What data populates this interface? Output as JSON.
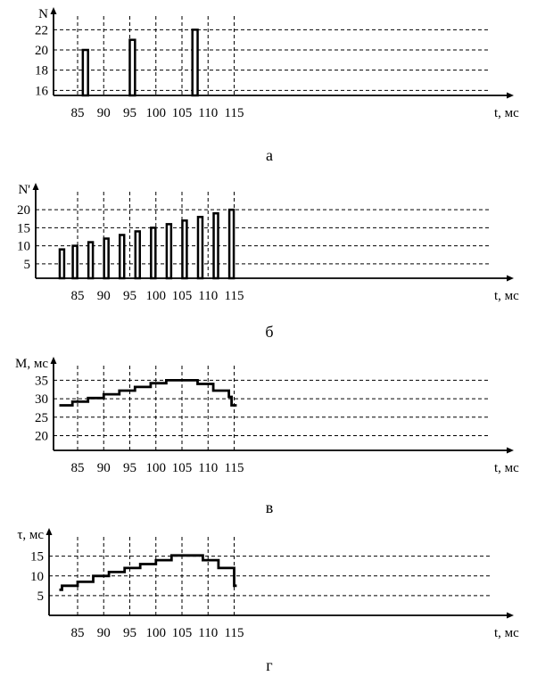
{
  "colors": {
    "line": "#000000",
    "grid": "#000000",
    "background": "#ffffff"
  },
  "chart_data": [
    {
      "type": "bar",
      "caption": "а",
      "ylabel": "N",
      "xlabel": "t, мс",
      "xlim": [
        81.5,
        117.5
      ],
      "ylim": [
        15.5,
        23
      ],
      "xticks": [
        85,
        90,
        95,
        100,
        105,
        110,
        115
      ],
      "yticks": [
        16,
        18,
        20,
        22
      ],
      "grid": true,
      "bar_width": 1,
      "points": [
        {
          "x": 86.5,
          "y": 20
        },
        {
          "x": 95.5,
          "y": 21
        },
        {
          "x": 107.5,
          "y": 22
        }
      ]
    },
    {
      "type": "bar",
      "caption": "б",
      "ylabel": "N'",
      "xlabel": "t, мс",
      "xlim": [
        81.5,
        117.5
      ],
      "ylim": [
        1,
        24
      ],
      "xticks": [
        85,
        90,
        95,
        100,
        105,
        110,
        115
      ],
      "yticks": [
        5,
        10,
        15,
        20
      ],
      "grid": true,
      "bar_width": 0.85,
      "points": [
        {
          "x": 82,
          "y": 9
        },
        {
          "x": 84.5,
          "y": 10
        },
        {
          "x": 87.5,
          "y": 11
        },
        {
          "x": 90.5,
          "y": 12
        },
        {
          "x": 93.5,
          "y": 13
        },
        {
          "x": 96.5,
          "y": 14
        },
        {
          "x": 99.5,
          "y": 15
        },
        {
          "x": 102.5,
          "y": 16
        },
        {
          "x": 105.5,
          "y": 17
        },
        {
          "x": 108.5,
          "y": 18
        },
        {
          "x": 111.5,
          "y": 19
        },
        {
          "x": 114.5,
          "y": 20
        }
      ]
    },
    {
      "type": "line",
      "step": true,
      "caption": "в",
      "ylabel": "M, мс",
      "xlabel": "t, мс",
      "xlim": [
        81.5,
        117.5
      ],
      "ylim": [
        16,
        38
      ],
      "xticks": [
        85,
        90,
        95,
        100,
        105,
        110,
        115
      ],
      "yticks": [
        20,
        25,
        30,
        35
      ],
      "grid": true,
      "series": [
        {
          "x": [
            81.5,
            84,
            84,
            87,
            87,
            90,
            90,
            93,
            93,
            96,
            96,
            99,
            99,
            102,
            102,
            108,
            108,
            111,
            111,
            114,
            114,
            114.5,
            114.5,
            115.5
          ],
          "y": [
            28.2,
            28.2,
            29.2,
            29.2,
            30.2,
            30.2,
            31.2,
            31.2,
            32.2,
            32.2,
            33.2,
            33.2,
            34.2,
            34.2,
            35,
            35,
            34,
            34,
            32.2,
            32.2,
            30.5,
            30.5,
            28.2,
            28.2
          ]
        }
      ]
    },
    {
      "type": "line",
      "step": true,
      "caption": "г",
      "ylabel": "τ, мс",
      "xlabel": "t, мс",
      "xlim": [
        81.5,
        117.5
      ],
      "ylim": [
        0,
        19
      ],
      "xticks": [
        85,
        90,
        95,
        100,
        105,
        110,
        115
      ],
      "yticks": [
        5,
        10,
        15
      ],
      "grid": true,
      "series": [
        {
          "x": [
            81.5,
            82,
            82,
            85,
            85,
            88,
            88,
            91,
            91,
            94,
            94,
            97,
            97,
            100,
            100,
            103,
            103,
            109,
            109,
            112,
            112,
            115,
            115,
            115.5
          ],
          "y": [
            6.5,
            6.5,
            7.5,
            7.5,
            8.5,
            8.5,
            10,
            10,
            11,
            11,
            12,
            12,
            13,
            13,
            14,
            14,
            15.2,
            15.2,
            14,
            14,
            12,
            12,
            7.5,
            7.5
          ]
        }
      ]
    }
  ]
}
